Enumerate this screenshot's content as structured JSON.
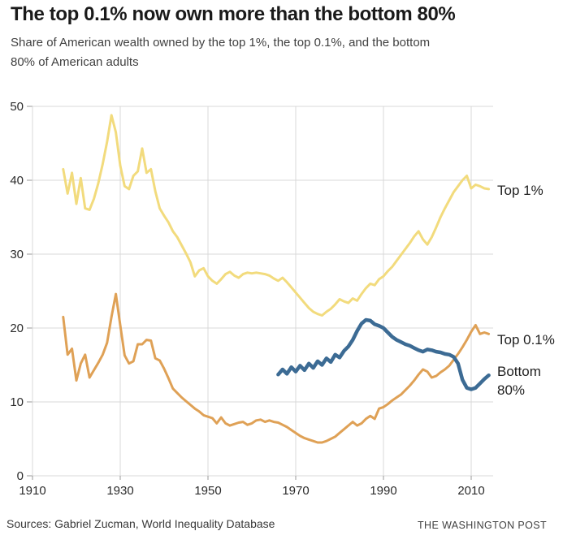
{
  "header": {
    "title": "The top 0.1% now own more than the bottom 80%",
    "subtitle_lines": [
      "Share of American wealth owned by the top 1%, the top 0.1%, and the bottom",
      "80% of American adults"
    ]
  },
  "chart_data": {
    "type": "line",
    "title": "The top 0.1% now own more than the bottom 80%",
    "xlabel": "",
    "ylabel": "",
    "xlim": [
      1910,
      2015
    ],
    "ylim": [
      0,
      50
    ],
    "xticks": [
      1910,
      1930,
      1950,
      1970,
      1990,
      2010
    ],
    "yticks": [
      0,
      10,
      20,
      30,
      40,
      50
    ],
    "grid": true,
    "legend_position": "end-of-line-labels-right",
    "series": [
      {
        "name": "Top 1%",
        "color": "#f2db7d",
        "line_width": 3,
        "start_year": 1917,
        "values": [
          41.5,
          38.2,
          41.0,
          36.8,
          40.3,
          36.2,
          36.0,
          37.5,
          39.6,
          42.2,
          45.2,
          48.8,
          46.5,
          42.0,
          39.2,
          38.8,
          40.6,
          41.2,
          44.3,
          41.0,
          41.5,
          38.5,
          36.2,
          35.2,
          34.3,
          33.1,
          32.3,
          31.2,
          30.1,
          28.9,
          27.0,
          27.8,
          28.1,
          27.0,
          26.4,
          26.0,
          26.6,
          27.3,
          27.6,
          27.1,
          26.8,
          27.3,
          27.5,
          27.4,
          27.5,
          27.4,
          27.3,
          27.1,
          26.7,
          26.4,
          26.8,
          26.2,
          25.5,
          24.8,
          24.1,
          23.4,
          22.7,
          22.2,
          21.9,
          21.7,
          22.2,
          22.6,
          23.2,
          23.9,
          23.6,
          23.4,
          24.0,
          23.7,
          24.6,
          25.4,
          26.0,
          25.8,
          26.6,
          27.0,
          27.7,
          28.3,
          29.1,
          29.9,
          30.7,
          31.5,
          32.4,
          33.1,
          32.0,
          31.3,
          32.3,
          33.6,
          35.0,
          36.2,
          37.3,
          38.4,
          39.2,
          40.0,
          40.6,
          38.9,
          39.4,
          39.2,
          38.9,
          38.8
        ]
      },
      {
        "name": "Top 0.1%",
        "color": "#dfa156",
        "line_width": 3,
        "start_year": 1917,
        "values": [
          21.5,
          16.4,
          17.2,
          12.9,
          15.2,
          16.4,
          13.3,
          14.3,
          15.3,
          16.4,
          18.0,
          21.5,
          24.6,
          20.4,
          16.3,
          15.2,
          15.5,
          17.8,
          17.8,
          18.4,
          18.3,
          15.9,
          15.6,
          14.5,
          13.2,
          11.8,
          11.2,
          10.6,
          10.1,
          9.6,
          9.1,
          8.7,
          8.2,
          8.0,
          7.8,
          7.1,
          7.9,
          7.1,
          6.8,
          7.0,
          7.2,
          7.3,
          6.9,
          7.1,
          7.5,
          7.6,
          7.3,
          7.5,
          7.3,
          7.2,
          6.9,
          6.6,
          6.2,
          5.8,
          5.4,
          5.1,
          4.9,
          4.7,
          4.5,
          4.5,
          4.7,
          5.0,
          5.3,
          5.8,
          6.3,
          6.8,
          7.3,
          6.8,
          7.1,
          7.7,
          8.1,
          7.7,
          9.1,
          9.3,
          9.7,
          10.2,
          10.6,
          11.0,
          11.6,
          12.2,
          12.9,
          13.7,
          14.4,
          14.1,
          13.3,
          13.5,
          14.0,
          14.4,
          14.9,
          15.7,
          16.5,
          17.4,
          18.4,
          19.5,
          20.4,
          19.2,
          19.4,
          19.2
        ]
      },
      {
        "name": "Bottom 80%",
        "color": "#3c6b94",
        "line_width": 4.5,
        "start_year": 1966,
        "values": [
          13.7,
          14.4,
          13.8,
          14.7,
          14.1,
          14.9,
          14.3,
          15.2,
          14.6,
          15.5,
          15.0,
          15.9,
          15.4,
          16.4,
          16.0,
          16.9,
          17.5,
          18.4,
          19.6,
          20.6,
          21.1,
          21.0,
          20.5,
          20.3,
          20.0,
          19.4,
          18.8,
          18.4,
          18.1,
          17.8,
          17.6,
          17.3,
          17.0,
          16.8,
          17.1,
          17.0,
          16.8,
          16.7,
          16.5,
          16.4,
          16.1,
          15.2,
          13.0,
          11.9,
          11.7,
          11.9,
          12.5,
          13.1,
          13.6
        ]
      }
    ]
  },
  "colors": {
    "grid": "#d8d8d8",
    "tick": "#999999",
    "axis_text": "#2b2b2b"
  },
  "footer": {
    "source": "Sources: Gabriel Zucman, World Inequality Database",
    "credit": "THE WASHINGTON POST"
  }
}
